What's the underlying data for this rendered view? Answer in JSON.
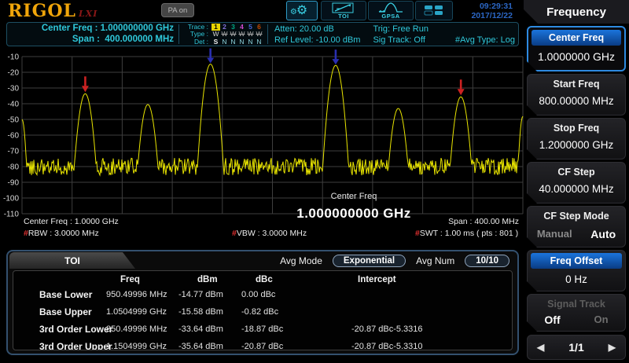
{
  "header": {
    "logo": "RIGOL",
    "logo_badge": "LXI",
    "pa_badge": "PA on",
    "toi_icon_label": "TOI",
    "gpsa_icon_label": "GPSA",
    "time": "09:29:31",
    "date": "2017/12/22"
  },
  "status_bar": {
    "center_freq_label": "Center Freq :",
    "center_freq_value": "1.000000000 GHz",
    "span_label": "Span :",
    "span_value": "400.000000 MHz",
    "trace_label": "Trace :",
    "trace_numbers": [
      "1",
      "2",
      "3",
      "4",
      "5",
      "6"
    ],
    "type_label": "Type :",
    "types": [
      {
        "v": "W",
        "struck": false
      },
      {
        "v": "W",
        "struck": true
      },
      {
        "v": "W",
        "struck": true
      },
      {
        "v": "W",
        "struck": true
      },
      {
        "v": "W",
        "struck": true
      },
      {
        "v": "W",
        "struck": true
      }
    ],
    "det_label": "Det :",
    "dets": [
      "S",
      "N",
      "N",
      "N",
      "N",
      "N"
    ],
    "atten": "Atten: 20.00 dB",
    "ref_level": "Ref Level: -10.00 dBm",
    "trig": "Trig: Free Run",
    "sig_track": "Sig Track: Off",
    "avg_type": "#Avg Type: Log"
  },
  "chart_footer": {
    "center_freq_annotation": "Center Freq",
    "center_freq_big": "1.000000000 GHz",
    "center_freq_left": "Center Freq : 1.0000 GHz",
    "span_right": "Span : 400.00 MHz",
    "hash": "#",
    "rbw": "RBW : 3.0000 MHz",
    "vbw": "VBW : 3.0000 MHz",
    "swt": "SWT : 1.00 ms ( pts : 801 )"
  },
  "toi_panel": {
    "tab": "TOI",
    "avg_mode_label": "Avg Mode",
    "avg_mode_value": "Exponential",
    "avg_num_label": "Avg Num",
    "avg_num_value": "10/10",
    "columns": [
      "Freq",
      "dBm",
      "dBc",
      "Intercept"
    ],
    "rows": [
      {
        "label": "Base Lower",
        "freq": "950.49996 MHz",
        "dbm": "-14.77 dBm",
        "dbc": "0.00 dBc",
        "intercept": ""
      },
      {
        "label": "Base Upper",
        "freq": "1.0504999 GHz",
        "dbm": "-15.58 dBm",
        "dbc": "-0.82 dBc",
        "intercept": ""
      },
      {
        "label": "3rd Order Lower",
        "freq": "850.49996 MHz",
        "dbm": "-33.64 dBm",
        "dbc": "-18.87 dBc",
        "intercept": "-20.87 dBc-5.3316"
      },
      {
        "label": "3rd Order Upper",
        "freq": "1.1504999 GHz",
        "dbm": "-35.64 dBm",
        "dbc": "-20.87 dBc",
        "intercept": "-20.87 dBc-5.3310"
      }
    ]
  },
  "sidebar": {
    "title": "Frequency",
    "center_freq": {
      "label": "Center Freq",
      "value": "1.0000000 GHz"
    },
    "start_freq": {
      "label": "Start Freq",
      "value": "800.00000 MHz"
    },
    "stop_freq": {
      "label": "Stop Freq",
      "value": "1.2000000 GHz"
    },
    "cf_step": {
      "label": "CF Step",
      "value": "40.000000 MHz"
    },
    "cf_step_mode": {
      "label": "CF Step Mode",
      "inactive": "Manual",
      "active": "Auto"
    },
    "freq_offset": {
      "label": "Freq Offset",
      "value": "0 Hz"
    },
    "signal_track": {
      "label": "Signal Track",
      "active": "Off",
      "inactive": "On"
    },
    "pager": {
      "prev": "◀",
      "value": "1/1",
      "next": "▶"
    }
  },
  "chart_data": {
    "type": "line",
    "title": "TOI spectrum trace",
    "x_range_mhz": [
      800,
      1200
    ],
    "ylim_dbm": [
      -110,
      -10
    ],
    "y_ticks": [
      -10,
      -20,
      -30,
      -40,
      -50,
      -60,
      -70,
      -80,
      -90,
      -100,
      -110
    ],
    "grid": {
      "cols": 10,
      "rows": 10
    },
    "ref_level_dbm": -10,
    "noise_floor_dbm": -80,
    "noise_spread_db": 11,
    "trace_color": "#e8e400",
    "peaks": [
      {
        "freq_mhz": 850.5,
        "level_dbm": -33.64,
        "marker": "red"
      },
      {
        "freq_mhz": 900.5,
        "level_dbm": -40.5,
        "marker": null
      },
      {
        "freq_mhz": 950.5,
        "level_dbm": -14.77,
        "marker": "blue"
      },
      {
        "freq_mhz": 1050.5,
        "level_dbm": -15.58,
        "marker": "blue"
      },
      {
        "freq_mhz": 1100.5,
        "level_dbm": -43.0,
        "marker": null
      },
      {
        "freq_mhz": 1150.5,
        "level_dbm": -35.64,
        "marker": "red"
      }
    ],
    "edges": [
      {
        "freq_mhz": 800,
        "level_dbm": -50
      },
      {
        "freq_mhz": 1200,
        "level_dbm": -48
      }
    ],
    "marker_colors": {
      "red": "#cc2222",
      "blue": "#2a2fb0"
    }
  }
}
